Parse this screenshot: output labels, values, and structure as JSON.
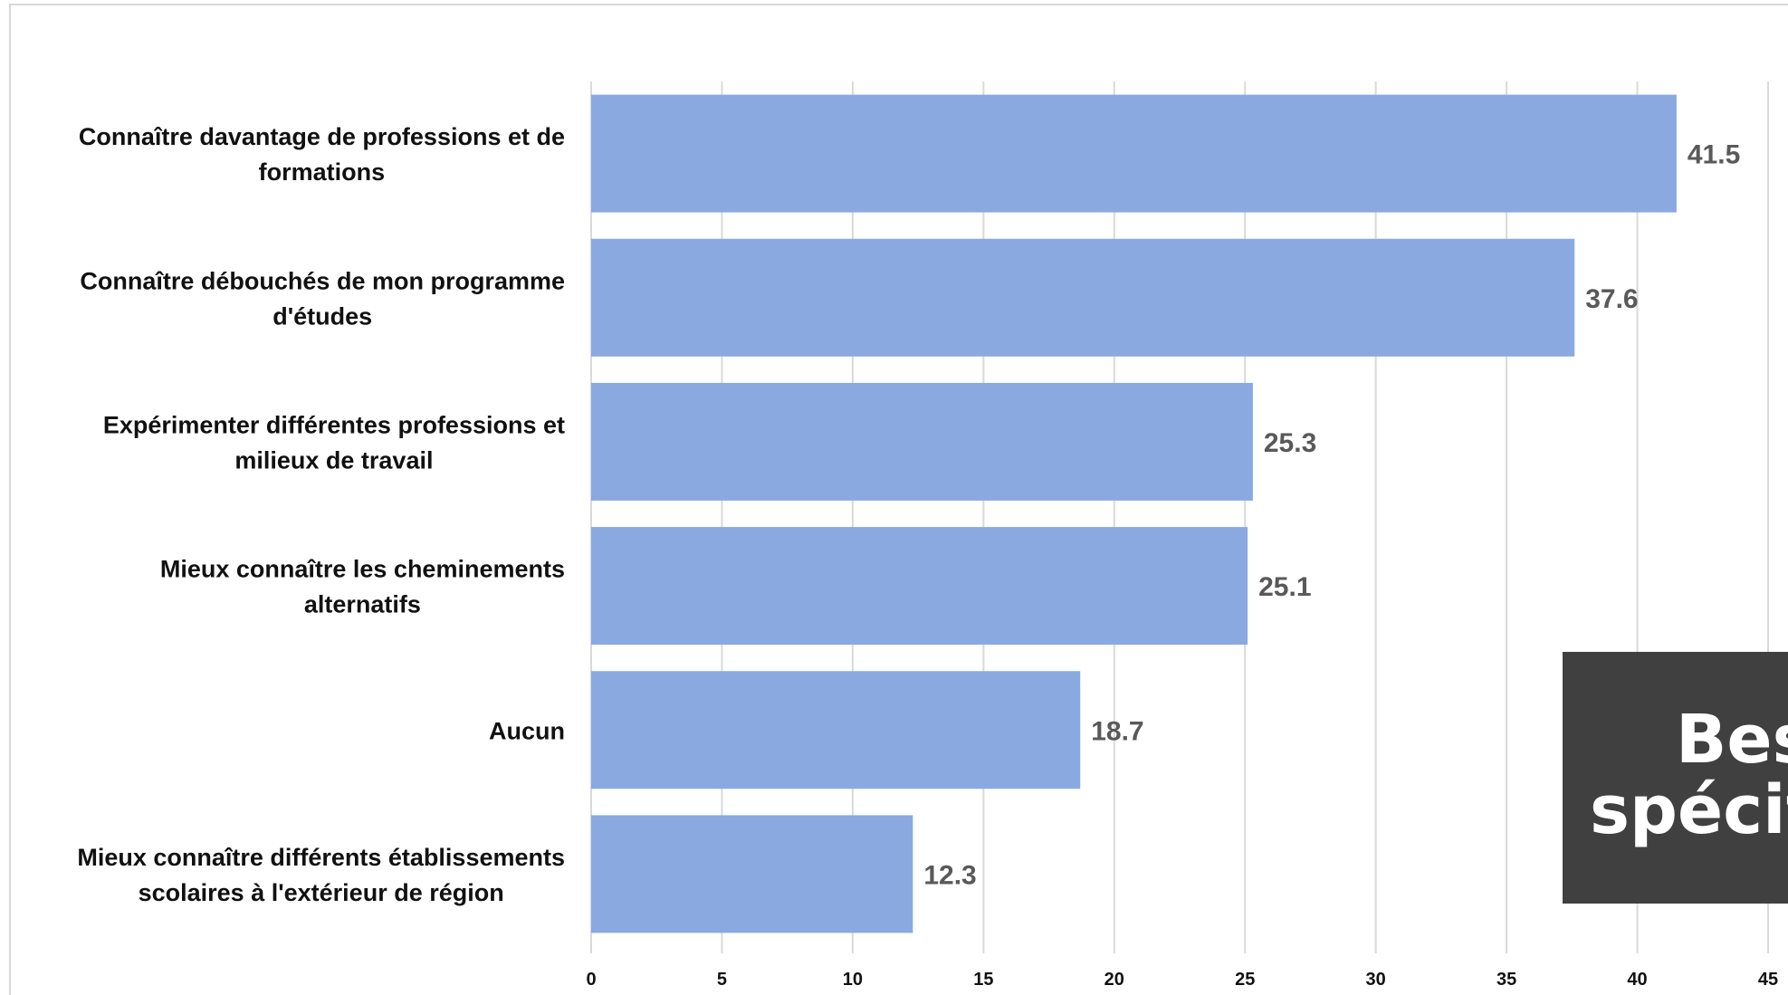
{
  "chart_data": {
    "type": "bar",
    "orientation": "horizontal",
    "categories": [
      [
        "Connaître davantage de professions et de",
        "formations"
      ],
      [
        "Connaître débouchés de mon programme",
        "d'études"
      ],
      [
        "Expérimenter différentes professions et",
        "milieux de travail"
      ],
      [
        "Mieux connaître les cheminements",
        "alternatifs"
      ],
      [
        "Aucun"
      ],
      [
        "Mieux connaître différents établissements",
        "scolaires à l'extérieur de région"
      ]
    ],
    "values": [
      41.5,
      37.6,
      25.3,
      25.1,
      18.7,
      12.3
    ],
    "value_labels": [
      "41.5",
      "37.6",
      "25.3",
      "25.1",
      "18.7",
      "12.3"
    ],
    "x_ticks": [
      "0",
      "5",
      "10",
      "15",
      "20",
      "25",
      "30",
      "35",
      "40",
      "45"
    ],
    "xlim": [
      0,
      45
    ],
    "grid": "vertical",
    "bar_color": "#8aa9e1",
    "grid_color": "#d9d9d9",
    "label_color": "#595959",
    "title": "",
    "xlabel": "",
    "ylabel": ""
  },
  "overlay": {
    "line1": "Beso",
    "line2": "spécifi",
    "background": "#404040",
    "color": "#ffffff"
  }
}
